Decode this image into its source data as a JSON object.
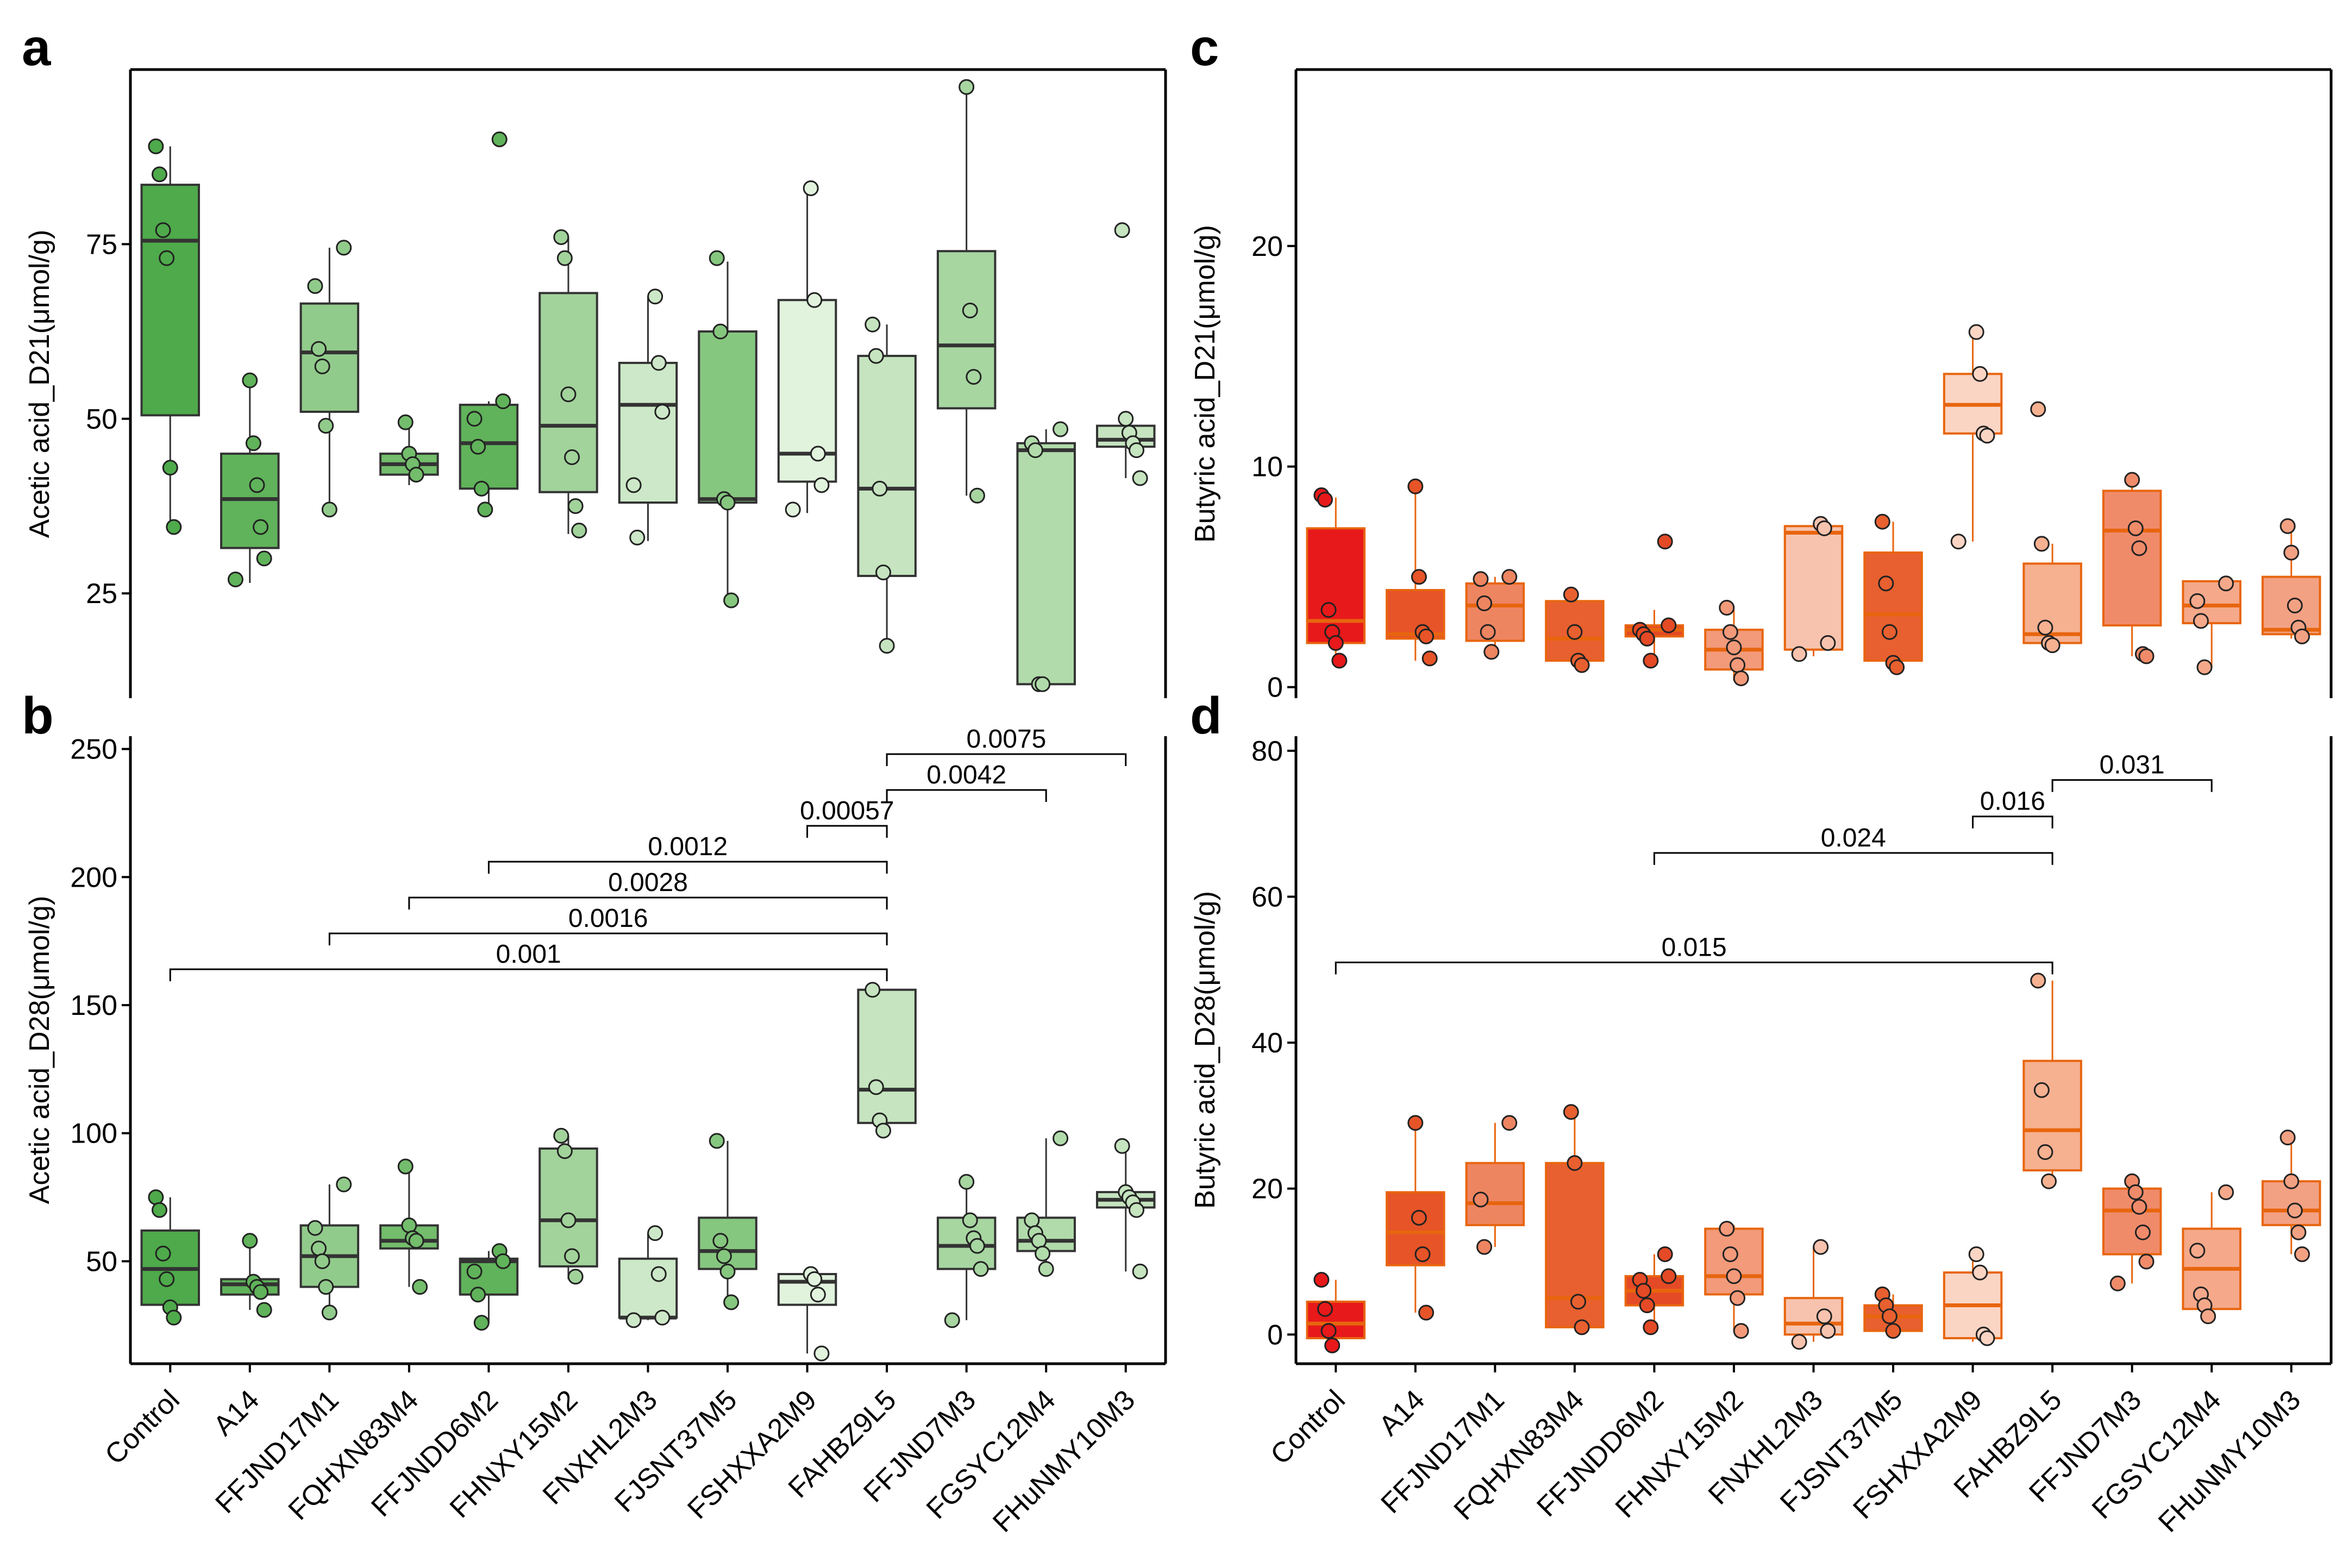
{
  "categories": [
    "Control",
    "A14",
    "FFJND17M1",
    "FQHXN83M4",
    "FFJNDD6M2",
    "FHNXY15M2",
    "FNXHL2M3",
    "FJSNT37M5",
    "FSHXXA2M9",
    "FAHBZ9L5",
    "FFJND7M3",
    "FGSYC12M4",
    "FHuNMY10M3"
  ],
  "colors": {
    "green": [
      "#4eaa4a",
      "#60b35a",
      "#91cb8b",
      "#73bd6c",
      "#60b35a",
      "#a2d39b",
      "#cde8c8",
      "#86c77f",
      "#e1f2dd",
      "#c5e4bf",
      "#a7d6a1",
      "#b1dbab",
      "#c5e4bf"
    ],
    "green_points": [
      "#4eaa4a",
      "#60b35a",
      "#91cb8b",
      "#73bd6c",
      "#60b35a",
      "#a2d39b",
      "#cde8c8",
      "#86c77f",
      "#e1f2dd",
      "#c5e4bf",
      "#a7d6a1",
      "#b1dbab",
      "#c5e4bf"
    ],
    "green_line": "#333333",
    "red": [
      "#e8191a",
      "#e65428",
      "#ee8561",
      "#e8602f",
      "#e44a25",
      "#f29a7a",
      "#f7c3ae",
      "#e8602f",
      "#fbd5c4",
      "#f6b191",
      "#f08b6a",
      "#f5a98a",
      "#f3a183"
    ],
    "red_line": "#e8650e",
    "red_line_dark": "#d8571a"
  },
  "chart_data": [
    {
      "panel": "a",
      "type": "box",
      "ylabel": "Acetic acid_D21(μmol/g)",
      "ylim": [
        10,
        100
      ],
      "yticks": [
        25,
        50,
        75
      ],
      "scheme": "green",
      "boxes": [
        {
          "q1": 50.5,
          "med": 75.5,
          "q3": 83.5,
          "lo": 34.5,
          "hi": 89,
          "pts": [
            89,
            85,
            77,
            73,
            43,
            34.5
          ]
        },
        {
          "q1": 31.5,
          "med": 38.5,
          "q3": 45,
          "lo": 26.5,
          "hi": 55.5,
          "pts": [
            55.5,
            46.5,
            40.5,
            34.5,
            30,
            27
          ]
        },
        {
          "q1": 51,
          "med": 59.5,
          "q3": 66.5,
          "lo": 36.5,
          "hi": 74.5,
          "pts": [
            74.5,
            69,
            60,
            57.5,
            49,
            37
          ]
        },
        {
          "q1": 42,
          "med": 43.5,
          "q3": 45,
          "lo": 40.5,
          "hi": 49.5,
          "pts": [
            49.5,
            45,
            43.5,
            42
          ]
        },
        {
          "q1": 40,
          "med": 46.5,
          "q3": 52,
          "lo": 36.5,
          "hi": 52.5,
          "pts": [
            90,
            52.5,
            50,
            46,
            40,
            37
          ]
        },
        {
          "q1": 39.5,
          "med": 49,
          "q3": 68,
          "lo": 33.5,
          "hi": 76,
          "pts": [
            76,
            73,
            53.5,
            44.5,
            37.5,
            34
          ]
        },
        {
          "q1": 38,
          "med": 52,
          "q3": 58,
          "lo": 32.5,
          "hi": 67.5,
          "pts": [
            67.5,
            58,
            51,
            40.5,
            33
          ]
        },
        {
          "q1": 38,
          "med": 38.5,
          "q3": 62.5,
          "lo": 23.5,
          "hi": 72.5,
          "pts": [
            73,
            62.5,
            38.5,
            38,
            24
          ]
        },
        {
          "q1": 41,
          "med": 45,
          "q3": 67,
          "lo": 36.5,
          "hi": 83,
          "pts": [
            83,
            67,
            45,
            40.5,
            37
          ]
        },
        {
          "q1": 27.5,
          "med": 40,
          "q3": 59,
          "lo": 17.5,
          "hi": 63.5,
          "pts": [
            63.5,
            59,
            40,
            28,
            17.5
          ]
        },
        {
          "q1": 51.5,
          "med": 60.5,
          "q3": 74,
          "lo": 39,
          "hi": 97,
          "pts": [
            97.5,
            65.5,
            56,
            39
          ]
        },
        {
          "q1": 12,
          "med": 45.5,
          "q3": 46.5,
          "lo": 12,
          "hi": 48.5,
          "pts": [
            48.5,
            46.5,
            45.5,
            12,
            12
          ]
        },
        {
          "q1": 46,
          "med": 47,
          "q3": 49,
          "lo": 41.5,
          "hi": 50,
          "pts": [
            77,
            50,
            48,
            46.5,
            45.5,
            41.5
          ]
        }
      ],
      "comparisons": []
    },
    {
      "panel": "b",
      "type": "box",
      "ylabel": "Acetic acid_D28(μmol/g)",
      "ylim": [
        10,
        255
      ],
      "yticks": [
        50,
        100,
        150,
        200,
        250
      ],
      "scheme": "green",
      "boxes": [
        {
          "q1": 33,
          "med": 47,
          "q3": 62,
          "lo": 27,
          "hi": 75,
          "pts": [
            75,
            70,
            53,
            43,
            32,
            28
          ]
        },
        {
          "q1": 37,
          "med": 41,
          "q3": 43,
          "lo": 31,
          "hi": 58,
          "pts": [
            58,
            42,
            40,
            38,
            31
          ]
        },
        {
          "q1": 40,
          "med": 52,
          "q3": 64,
          "lo": 29,
          "hi": 80,
          "pts": [
            80,
            63,
            55,
            50,
            40,
            30
          ]
        },
        {
          "q1": 55,
          "med": 58,
          "q3": 64,
          "lo": 40,
          "hi": 87,
          "pts": [
            87,
            64,
            59,
            58,
            40
          ]
        },
        {
          "q1": 37,
          "med": 50,
          "q3": 51,
          "lo": 26,
          "hi": 54,
          "pts": [
            54,
            50,
            46,
            37,
            26
          ]
        },
        {
          "q1": 48,
          "med": 66,
          "q3": 94,
          "lo": 43,
          "hi": 99,
          "pts": [
            99,
            93,
            66,
            52,
            44
          ]
        },
        {
          "q1": 28,
          "med": 28,
          "q3": 51,
          "lo": 27,
          "hi": 61,
          "pts": [
            61,
            45,
            28,
            27
          ]
        },
        {
          "q1": 47,
          "med": 54,
          "q3": 67,
          "lo": 33,
          "hi": 97,
          "pts": [
            97,
            58,
            52,
            46,
            34
          ]
        },
        {
          "q1": 33,
          "med": 42,
          "q3": 45,
          "lo": 14,
          "hi": 45,
          "pts": [
            45,
            43,
            37,
            14
          ]
        },
        {
          "q1": 104,
          "med": 117,
          "q3": 156,
          "lo": 102,
          "hi": 156,
          "pts": [
            156,
            118,
            105,
            101
          ]
        },
        {
          "q1": 47,
          "med": 56,
          "q3": 67,
          "lo": 27,
          "hi": 81,
          "pts": [
            81,
            66,
            59,
            56,
            47,
            27
          ]
        },
        {
          "q1": 54,
          "med": 58,
          "q3": 67,
          "lo": 46,
          "hi": 98,
          "pts": [
            98,
            66,
            61,
            58,
            53,
            47
          ]
        },
        {
          "q1": 71,
          "med": 74,
          "q3": 77,
          "lo": 46,
          "hi": 95,
          "pts": [
            95,
            77,
            75,
            73,
            70,
            46
          ]
        }
      ],
      "comparisons": [
        {
          "from": 0,
          "to": 9,
          "y": 164,
          "label": "0.001"
        },
        {
          "from": 2,
          "to": 9,
          "y": 178,
          "label": "0.0016"
        },
        {
          "from": 3,
          "to": 9,
          "y": 192,
          "label": "0.0028"
        },
        {
          "from": 4,
          "to": 9,
          "y": 206,
          "label": "0.0012"
        },
        {
          "from": 8,
          "to": 9,
          "y": 220,
          "label": "0.00057"
        },
        {
          "from": 9,
          "to": 11,
          "y": 234,
          "label": "0.0042"
        },
        {
          "from": 9,
          "to": 12,
          "y": 248,
          "label": "0.0075"
        }
      ]
    },
    {
      "panel": "c",
      "type": "box",
      "ylabel": "Butyric acid_D21(μmol/g)",
      "ylim": [
        -0.5,
        28
      ],
      "yticks": [
        0,
        10,
        20
      ],
      "scheme": "red",
      "boxes": [
        {
          "q1": 2,
          "med": 3,
          "q3": 7.2,
          "lo": 1.2,
          "hi": 8.6,
          "pts": [
            8.7,
            8.5,
            3.5,
            2.5,
            2,
            1.2
          ]
        },
        {
          "q1": 2.2,
          "med": 2.4,
          "q3": 4.4,
          "lo": 1.2,
          "hi": 9.1,
          "pts": [
            9.1,
            5,
            2.5,
            2.3,
            1.3
          ]
        },
        {
          "q1": 2.1,
          "med": 3.7,
          "q3": 4.7,
          "lo": 1.6,
          "hi": 5,
          "pts": [
            5,
            4.9,
            3.8,
            2.5,
            1.6
          ]
        },
        {
          "q1": 1.2,
          "med": 2.2,
          "q3": 3.9,
          "lo": 1,
          "hi": 4.3,
          "pts": [
            4.2,
            2.5,
            1.2,
            1
          ]
        },
        {
          "q1": 2.3,
          "med": 2.6,
          "q3": 2.8,
          "lo": 1.2,
          "hi": 3.5,
          "pts": [
            6.6,
            2.8,
            2.6,
            2.4,
            2.2,
            1.2
          ]
        },
        {
          "q1": 0.8,
          "med": 1.7,
          "q3": 2.6,
          "lo": 0.3,
          "hi": 3.5,
          "pts": [
            3.6,
            2.5,
            1.8,
            1,
            0.4
          ]
        },
        {
          "q1": 1.7,
          "med": 7,
          "q3": 7.3,
          "lo": 1.4,
          "hi": 7.4,
          "pts": [
            7.4,
            7.2,
            2,
            1.5
          ]
        },
        {
          "q1": 1.2,
          "med": 3.3,
          "q3": 6.1,
          "lo": 0.9,
          "hi": 7.5,
          "pts": [
            7.5,
            4.7,
            2.5,
            1.1,
            0.9
          ]
        },
        {
          "q1": 11.5,
          "med": 12.8,
          "q3": 14.2,
          "lo": 6.6,
          "hi": 16.1,
          "pts": [
            16.1,
            14.2,
            11.5,
            11.4,
            6.6
          ]
        },
        {
          "q1": 2,
          "med": 2.4,
          "q3": 5.6,
          "lo": 1.8,
          "hi": 6.5,
          "pts": [
            12.6,
            6.5,
            2.7,
            2,
            1.9
          ]
        },
        {
          "q1": 2.8,
          "med": 7.1,
          "q3": 8.9,
          "lo": 1.4,
          "hi": 9.4,
          "pts": [
            9.4,
            7.2,
            6.3,
            1.5,
            1.4
          ]
        },
        {
          "q1": 2.9,
          "med": 3.7,
          "q3": 4.8,
          "lo": 0.9,
          "hi": 4.8,
          "pts": [
            4.7,
            3.9,
            3,
            0.9
          ]
        },
        {
          "q1": 2.4,
          "med": 2.6,
          "q3": 5,
          "lo": 2.2,
          "hi": 7.3,
          "pts": [
            7.3,
            6.1,
            3.7,
            2.7,
            2.3
          ]
        }
      ],
      "comparisons": []
    },
    {
      "panel": "d",
      "type": "box",
      "ylabel": "Butyric acid_D28(μmol/g)",
      "ylim": [
        -4,
        82
      ],
      "yticks": [
        0,
        20,
        40,
        60,
        80
      ],
      "scheme": "red",
      "boxes": [
        {
          "q1": -0.5,
          "med": 1.5,
          "q3": 4.5,
          "lo": -1.5,
          "hi": 7.5,
          "pts": [
            7.5,
            3.5,
            0.5,
            -1.5
          ]
        },
        {
          "q1": 9.5,
          "med": 14,
          "q3": 19.5,
          "lo": 3,
          "hi": 29,
          "pts": [
            29,
            16,
            11,
            3
          ]
        },
        {
          "q1": 15,
          "med": 18,
          "q3": 23.5,
          "lo": 12,
          "hi": 29,
          "pts": [
            29,
            18.5,
            12
          ]
        },
        {
          "q1": 1,
          "med": 5,
          "q3": 23.5,
          "lo": 1,
          "hi": 30.5,
          "pts": [
            30.5,
            23.5,
            4.5,
            1
          ]
        },
        {
          "q1": 4,
          "med": 6,
          "q3": 8,
          "lo": 1,
          "hi": 11,
          "pts": [
            11,
            8,
            7.5,
            6,
            4,
            1
          ]
        },
        {
          "q1": 5.5,
          "med": 8,
          "q3": 14.5,
          "lo": 0.5,
          "hi": 15,
          "pts": [
            14.5,
            11,
            8,
            5,
            0.5
          ]
        },
        {
          "q1": 0,
          "med": 1.5,
          "q3": 5,
          "lo": -1,
          "hi": 12,
          "pts": [
            12,
            2.5,
            0.5,
            -1
          ]
        },
        {
          "q1": 0.5,
          "med": 2.5,
          "q3": 4,
          "lo": 0,
          "hi": 5.5,
          "pts": [
            5.5,
            4,
            2.5,
            0.5
          ]
        },
        {
          "q1": -0.5,
          "med": 4,
          "q3": 8.5,
          "lo": -1,
          "hi": 11,
          "pts": [
            11,
            8.5,
            0,
            -0.5
          ]
        },
        {
          "q1": 22.5,
          "med": 28,
          "q3": 37.5,
          "lo": 21,
          "hi": 48.5,
          "pts": [
            48.5,
            33.5,
            25,
            21
          ]
        },
        {
          "q1": 11,
          "med": 17,
          "q3": 20,
          "lo": 7,
          "hi": 21,
          "pts": [
            21,
            19.5,
            17.5,
            14,
            10,
            7
          ]
        },
        {
          "q1": 3.5,
          "med": 9,
          "q3": 14.5,
          "lo": 2.5,
          "hi": 19.5,
          "pts": [
            19.5,
            11.5,
            5.5,
            4,
            2.5
          ]
        },
        {
          "q1": 15,
          "med": 17,
          "q3": 21,
          "lo": 11,
          "hi": 27,
          "pts": [
            27,
            21,
            17,
            14,
            11
          ]
        }
      ],
      "comparisons": [
        {
          "from": 0,
          "to": 9,
          "y": 51,
          "label": "0.015"
        },
        {
          "from": 4,
          "to": 9,
          "y": 66,
          "label": "0.024"
        },
        {
          "from": 8,
          "to": 9,
          "y": 71,
          "label": "0.016"
        },
        {
          "from": 9,
          "to": 11,
          "y": 76,
          "label": "0.031"
        }
      ]
    }
  ],
  "panels": {
    "a": {
      "letter": "a"
    },
    "b": {
      "letter": "b"
    },
    "c": {
      "letter": "c"
    },
    "d": {
      "letter": "d"
    }
  }
}
